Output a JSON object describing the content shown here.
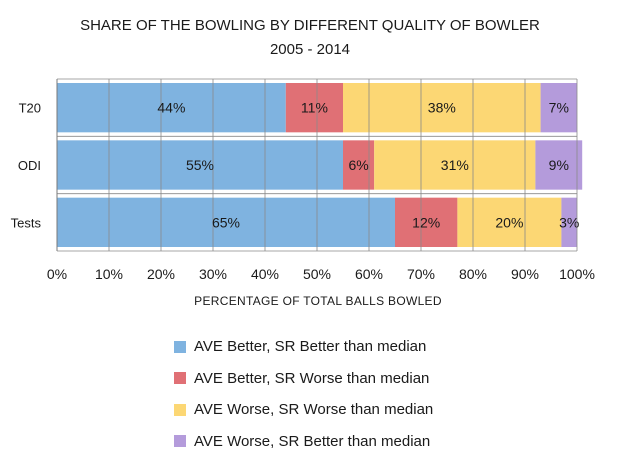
{
  "chart_data": {
    "type": "bar",
    "orientation": "horizontal",
    "stacked": true,
    "title": "SHARE OF THE BOWLING BY DIFFERENT QUALITY OF BOWLER",
    "subtitle": "2005 - 2014",
    "xlabel": "PERCENTAGE  OF TOTAL BALLS BOWLED",
    "ylabel": "",
    "xlim": [
      0,
      100
    ],
    "xticks": [
      "0%",
      "10%",
      "20%",
      "30%",
      "40%",
      "50%",
      "60%",
      "70%",
      "80%",
      "90%",
      "100%"
    ],
    "categories": [
      "T20",
      "ODI",
      "Tests"
    ],
    "series": [
      {
        "name": "AVE Better, SR Better than median",
        "color": "#7fb3e0",
        "values": [
          44,
          55,
          65
        ],
        "labels": [
          "44%",
          "55%",
          "65%"
        ]
      },
      {
        "name": "AVE Better, SR Worse than median",
        "color": "#e07075",
        "values": [
          11,
          6,
          12
        ],
        "labels": [
          "11%",
          "6%",
          "12%"
        ]
      },
      {
        "name": "AVE Worse, SR Worse than median",
        "color": "#fcd774",
        "values": [
          38,
          31,
          20
        ],
        "labels": [
          "38%",
          "31%",
          "20%"
        ]
      },
      {
        "name": "AVE Worse, SR Better than median",
        "color": "#b49bdb",
        "values": [
          7,
          9,
          3
        ],
        "labels": [
          "7%",
          "9%",
          "3%"
        ]
      }
    ],
    "grid": true,
    "legend": "bottom"
  }
}
